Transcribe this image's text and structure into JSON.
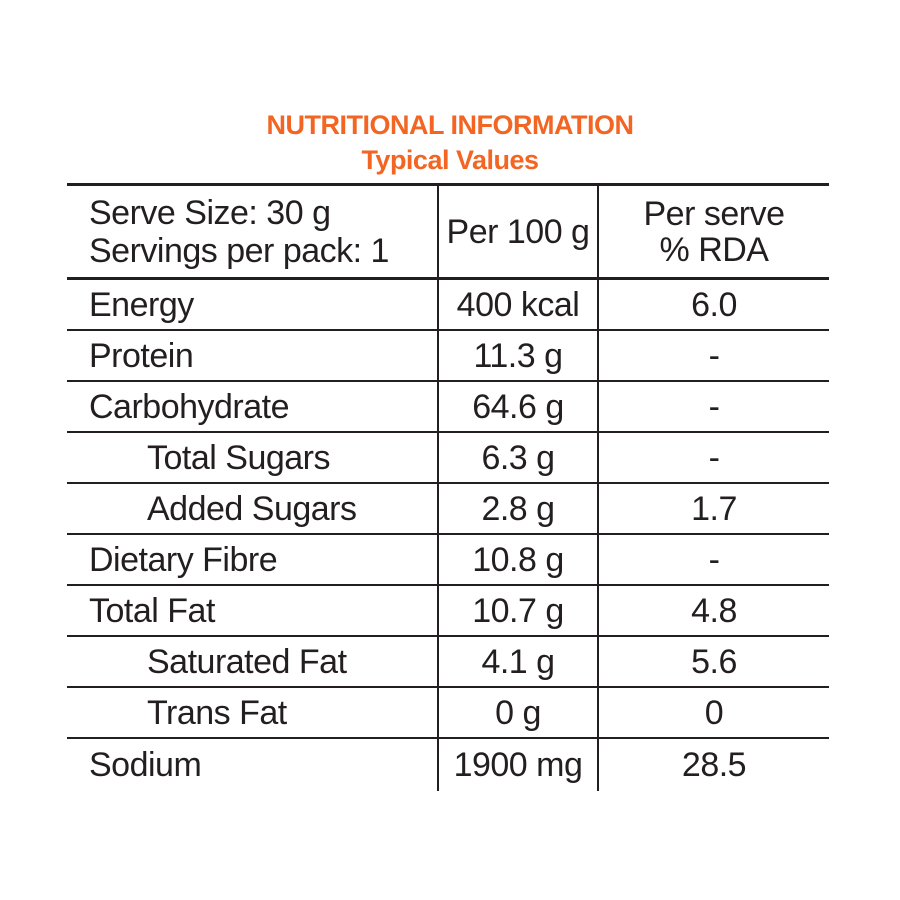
{
  "title": "NUTRITIONAL INFORMATION",
  "subtitle": "Typical Values",
  "header": {
    "serve_size": "Serve Size: 30 g",
    "servings_per_pack": "Servings per pack: 1",
    "per_100g": "Per 100 g",
    "per_serve_line1": "Per serve",
    "per_serve_line2": "% RDA"
  },
  "rows": [
    {
      "nutrient": "Energy",
      "per_100g": "400 kcal",
      "rda": "6.0"
    },
    {
      "nutrient": "Protein",
      "per_100g": "11.3 g",
      "rda": "-"
    },
    {
      "nutrient": "Carbohydrate",
      "per_100g": "64.6 g",
      "rda": "-"
    },
    {
      "nutrient": "Total Sugars",
      "per_100g": "6.3 g",
      "rda": "-"
    },
    {
      "nutrient": "Added Sugars",
      "per_100g": "2.8 g",
      "rda": "1.7"
    },
    {
      "nutrient": "Dietary Fibre",
      "per_100g": "10.8 g",
      "rda": "-"
    },
    {
      "nutrient": "Total Fat",
      "per_100g": "10.7 g",
      "rda": "4.8"
    },
    {
      "nutrient": "Saturated Fat",
      "per_100g": "4.1 g",
      "rda": "5.6"
    },
    {
      "nutrient": "Trans Fat",
      "per_100g": "0 g",
      "rda": "0"
    },
    {
      "nutrient": "Sodium",
      "per_100g": "1900 mg",
      "rda": "28.5"
    }
  ],
  "colors": {
    "heading": "#f26522",
    "text": "#231f20",
    "rule": "#231f20",
    "background": "#ffffff"
  }
}
